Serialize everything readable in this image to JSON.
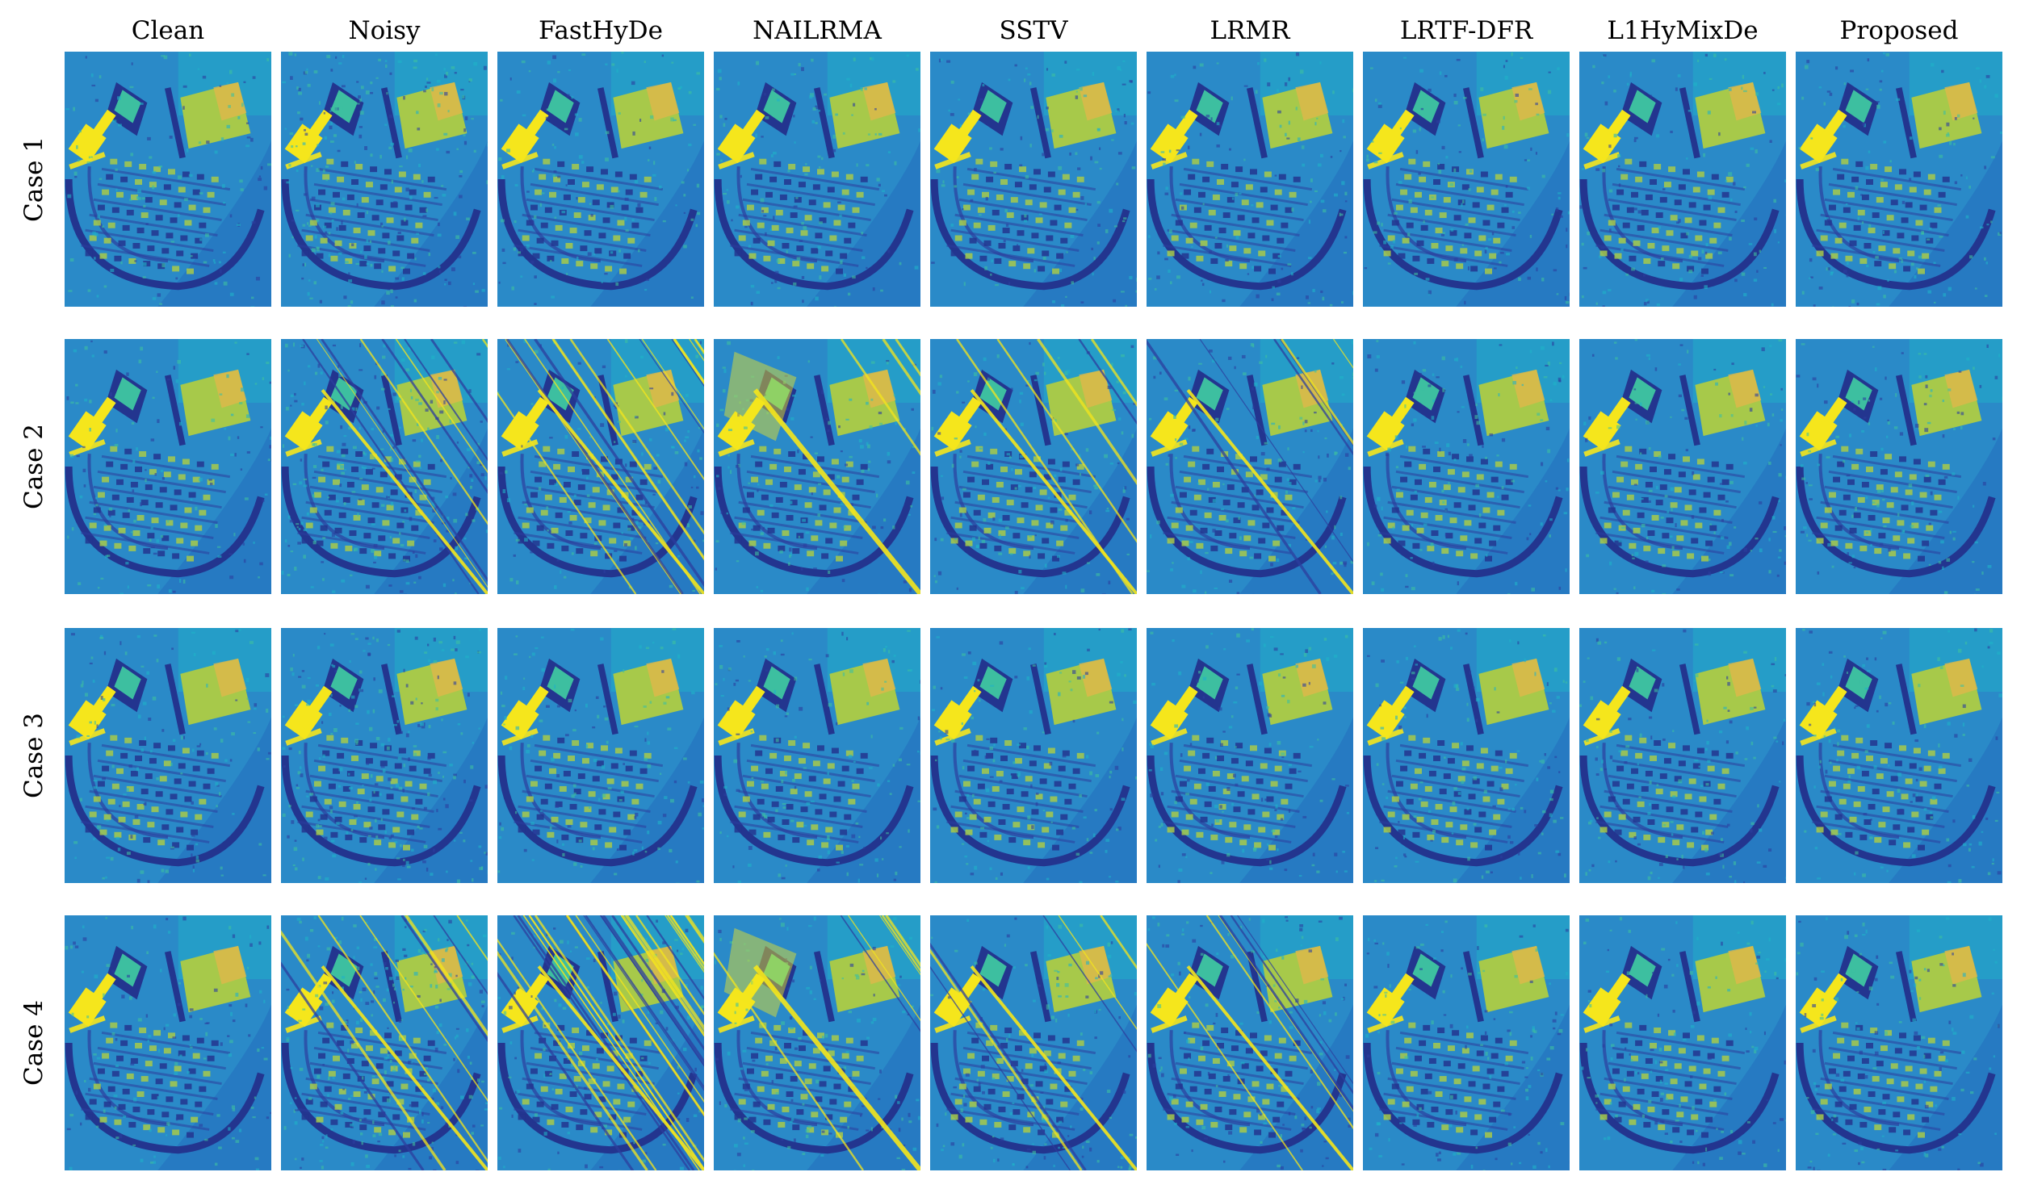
{
  "columns": [
    "Clean",
    "Noisy",
    "FastHyDe",
    "NAILRMA",
    "SSTV",
    "LRMR",
    "LRTF-DFR",
    "L1HyMixDe",
    "Proposed"
  ],
  "rows": [
    "Case 1",
    "Case 2",
    "Case 3",
    "Case 4"
  ],
  "colors": {
    "background_blue": "#2a8ac8",
    "dark_blue": "#2c3e9e",
    "deep_blue": "#23358f",
    "cyan": "#1fb3c8",
    "teal_green": "#3dbfa0",
    "yellow_green": "#a7c94a",
    "yellow": "#f5e61c",
    "orange": "#e0b84a"
  }
}
